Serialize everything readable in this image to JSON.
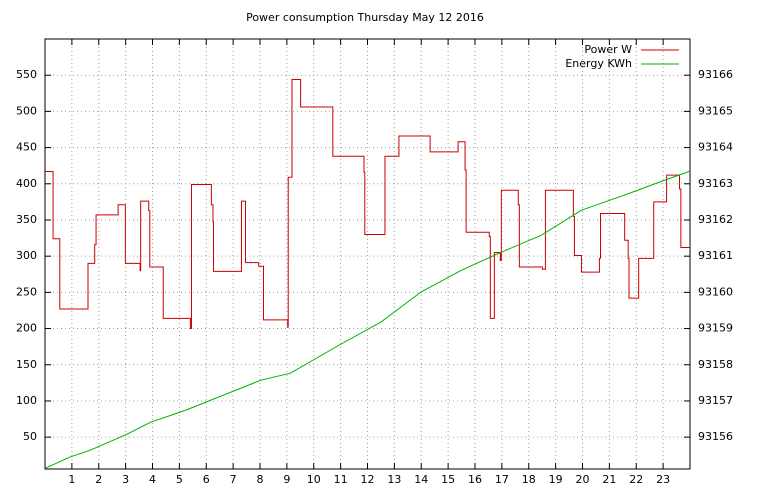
{
  "chart_data": {
    "type": "line",
    "title": "Power consumption Thursday May 12 2016",
    "xlim": [
      0,
      24
    ],
    "xticks": [
      1,
      2,
      3,
      4,
      5,
      6,
      7,
      8,
      9,
      10,
      11,
      12,
      13,
      14,
      15,
      16,
      17,
      18,
      19,
      20,
      21,
      22,
      23
    ],
    "ylim": [
      6,
      600
    ],
    "yticks": [
      50,
      100,
      150,
      200,
      250,
      300,
      350,
      400,
      450,
      500,
      550
    ],
    "y2lim": [
      93155.12,
      93167
    ],
    "y2ticks": [
      93156,
      93157,
      93158,
      93159,
      93160,
      93161,
      93162,
      93163,
      93164,
      93165,
      93166
    ],
    "grid": true,
    "legend": "top-right",
    "series": [
      {
        "name": "Power W",
        "color": "#cc0000",
        "step": true,
        "x": [
          0,
          0.3,
          0.55,
          1.6,
          1.85,
          1.9,
          2.72,
          2.99,
          3.54,
          3.56,
          3.86,
          3.9,
          4.4,
          5.41,
          5.45,
          6.19,
          6.25,
          6.27,
          7.31,
          7.46,
          7.95,
          8.13,
          9.03,
          9.05,
          9.19,
          9.51,
          10.71,
          11.87,
          11.9,
          12.65,
          13.17,
          14.33,
          15.37,
          15.63,
          15.67,
          16.53,
          16.57,
          16.72,
          16.94,
          16.98,
          17.61,
          17.65,
          18.51,
          18.62,
          19.66,
          19.7,
          19.96,
          20.63,
          20.67,
          21.57,
          21.7,
          21.73,
          22.09,
          22.65,
          23.13,
          23.61,
          23.66,
          24
        ],
        "values": [
          417,
          324,
          227,
          290,
          316,
          357,
          371,
          290,
          280,
          376,
          363,
          285,
          214,
          200,
          399,
          371,
          347,
          279,
          376,
          291,
          286,
          212,
          202,
          409,
          544,
          506,
          438,
          416,
          330,
          438,
          466,
          444,
          458,
          419,
          333,
          327,
          214,
          305,
          294,
          391,
          371,
          285,
          282,
          391,
          355,
          301,
          278,
          297,
          359,
          322,
          297,
          242,
          297,
          375,
          412,
          393,
          312,
          312
        ]
      },
      {
        "name": "Energy KWh",
        "color": "#00b000",
        "axis": "y2",
        "x": [
          0,
          0.93,
          1.68,
          2.99,
          3.92,
          5.22,
          6.16,
          8.02,
          9.14,
          11.01,
          12.5,
          13.99,
          15.49,
          16.98,
          18.47,
          19.96,
          21.46,
          22.95,
          24
        ],
        "values": [
          93155.14,
          93155.45,
          93155.64,
          93156.06,
          93156.41,
          93156.74,
          93157.02,
          93157.57,
          93157.77,
          93158.57,
          93159.18,
          93160.01,
          93160.61,
          93161.11,
          93161.58,
          93162.27,
          93162.66,
          93163.07,
          93163.35
        ]
      }
    ]
  }
}
